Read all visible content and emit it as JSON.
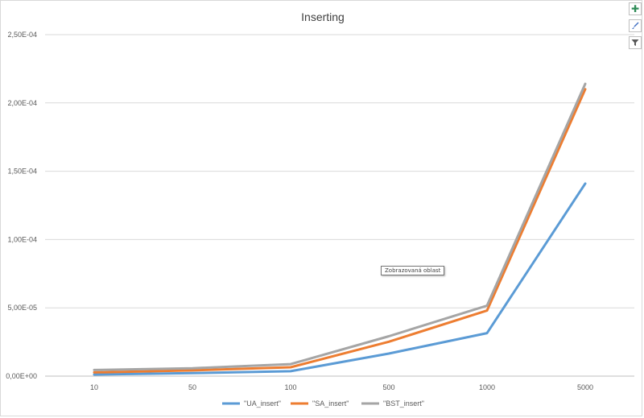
{
  "tooltip": "Zobrazovaná oblast",
  "toolbar": {
    "add_icon": "plus-icon",
    "style_icon": "brush-icon",
    "filter_icon": "filter-icon"
  },
  "chart_data": {
    "type": "line",
    "title": "Inserting",
    "xlabel": "",
    "ylabel": "",
    "categories": [
      "10",
      "50",
      "100",
      "500",
      "1000",
      "5000"
    ],
    "ylim": [
      0,
      0.00025
    ],
    "yticks": [
      "0,00E+00",
      "5,00E-05",
      "1,00E-04",
      "1,50E-04",
      "2,00E-04",
      "2,50E-04"
    ],
    "ytick_values": [
      0,
      5e-05,
      0.0001,
      0.00015,
      0.0002,
      0.00025
    ],
    "grid": true,
    "legend_position": "bottom",
    "series": [
      {
        "name": "\"UA_insert\"",
        "color": "#5b9bd5",
        "values": [
          1.2e-06,
          2.2e-06,
          3.6e-06,
          1.65e-05,
          3.15e-05,
          0.000141
        ]
      },
      {
        "name": "\"SA_insert\"",
        "color": "#ed7d31",
        "values": [
          2.7e-06,
          4.2e-06,
          6.5e-06,
          2.52e-05,
          4.8e-05,
          0.00021
        ]
      },
      {
        "name": "\"BST_insert\"",
        "color": "#a5a5a5",
        "values": [
          4.5e-06,
          5.8e-06,
          8.8e-06,
          2.92e-05,
          5.16e-05,
          0.000214
        ]
      }
    ]
  }
}
